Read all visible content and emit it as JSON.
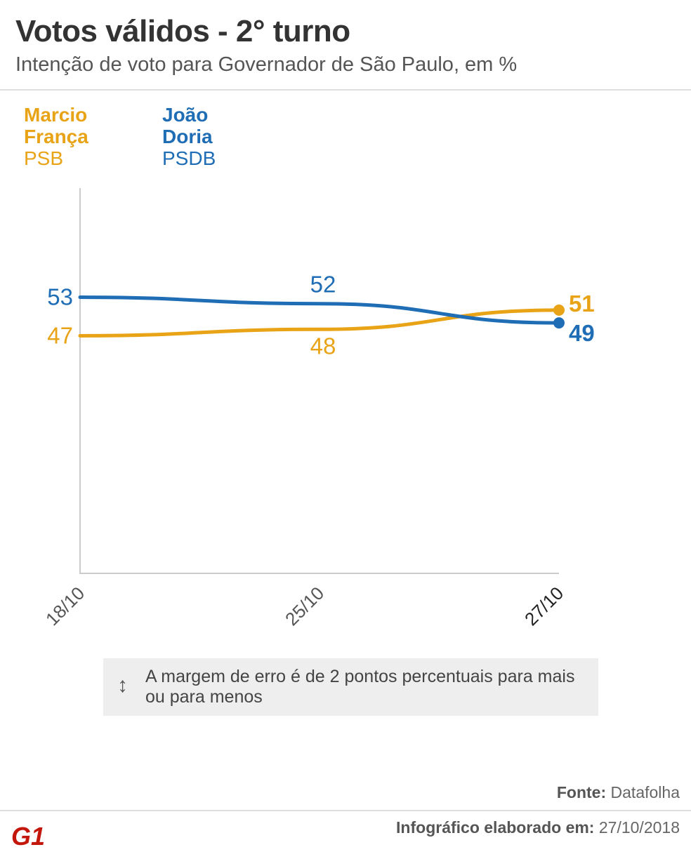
{
  "header": {
    "title": "Votos válidos - 2° turno",
    "subtitle": "Intenção de voto para Governador de São Paulo, em %"
  },
  "legend": [
    {
      "name_line1": "Marcio",
      "name_line2": "França",
      "party": "PSB",
      "color": "#e8a317"
    },
    {
      "name_line1": "João",
      "name_line2": "Doria",
      "party": "PSDB",
      "color": "#1f6db5"
    }
  ],
  "chart_data": {
    "type": "line",
    "x": [
      "18/10",
      "25/10",
      "27/10"
    ],
    "series": [
      {
        "name": "Marcio França",
        "values": [
          47,
          48,
          51
        ],
        "color": "#e8a317"
      },
      {
        "name": "João Doria",
        "values": [
          53,
          52,
          49
        ],
        "color": "#1f6db5"
      }
    ],
    "ylim": [
      10,
      70
    ],
    "grid": false,
    "legend_position": "top-left"
  },
  "note": {
    "icon": "up-down-arrow-icon",
    "text": "A margem de erro é de 2 pontos percentuais para mais ou para menos"
  },
  "footer": {
    "source_label": "Fonte:",
    "source_value": "Datafolha",
    "credit_label": "Infográfico elaborado em:",
    "credit_value": "27/10/2018",
    "logo_text": "G1",
    "logo_color": "#c4170c"
  }
}
